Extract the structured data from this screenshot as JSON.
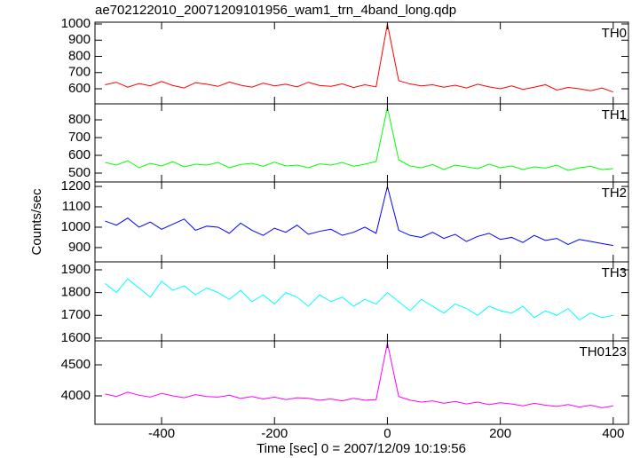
{
  "chart_data": [
    {
      "type": "line",
      "title": "ae702122010_20071209101956_wam1_trn_4band_long.qdp",
      "x": [
        -500,
        -480,
        -460,
        -440,
        -420,
        -400,
        -380,
        -360,
        -340,
        -320,
        -300,
        -280,
        -260,
        -240,
        -220,
        -200,
        -180,
        -160,
        -140,
        -120,
        -100,
        -80,
        -60,
        -40,
        -20,
        0,
        20,
        40,
        60,
        80,
        100,
        120,
        140,
        160,
        180,
        200,
        220,
        240,
        260,
        280,
        300,
        320,
        340,
        360,
        380,
        400
      ],
      "xlim": [
        -518,
        427
      ],
      "ylim": [
        507,
        1011
      ],
      "yticks": [
        600,
        700,
        800,
        900,
        1000
      ],
      "series": [
        {
          "name": "TH0",
          "color": "#ff0000",
          "values": [
            625,
            640,
            610,
            632,
            618,
            645,
            620,
            605,
            638,
            628,
            615,
            642,
            622,
            610,
            635,
            618,
            628,
            612,
            640,
            620,
            615,
            630,
            608,
            625,
            612,
            1000,
            650,
            630,
            618,
            625,
            610,
            622,
            605,
            628,
            612,
            600,
            618,
            596,
            610,
            625,
            592,
            608,
            600,
            588,
            605,
            580
          ]
        }
      ]
    },
    {
      "type": "line",
      "x": [
        -500,
        -480,
        -460,
        -440,
        -420,
        -400,
        -380,
        -360,
        -340,
        -320,
        -300,
        -280,
        -260,
        -240,
        -220,
        -200,
        -180,
        -160,
        -140,
        -120,
        -100,
        -80,
        -60,
        -40,
        -20,
        0,
        20,
        40,
        60,
        80,
        100,
        120,
        140,
        160,
        180,
        200,
        220,
        240,
        260,
        280,
        300,
        320,
        340,
        360,
        380,
        400
      ],
      "xlim": [
        -518,
        427
      ],
      "ylim": [
        450,
        890
      ],
      "yticks": [
        500,
        600,
        700,
        800
      ],
      "series": [
        {
          "name": "TH1",
          "color": "#00ff00",
          "values": [
            560,
            545,
            570,
            530,
            555,
            540,
            565,
            535,
            550,
            545,
            560,
            530,
            548,
            555,
            538,
            562,
            540,
            545,
            530,
            552,
            545,
            560,
            538,
            550,
            565,
            870,
            575,
            540,
            530,
            548,
            520,
            545,
            535,
            525,
            550,
            530,
            540,
            520,
            535,
            528,
            545,
            515,
            530,
            538,
            520,
            525
          ]
        }
      ]
    },
    {
      "type": "line",
      "ylabel": "Counts/sec",
      "x": [
        -500,
        -480,
        -460,
        -440,
        -420,
        -400,
        -380,
        -360,
        -340,
        -320,
        -300,
        -280,
        -260,
        -240,
        -220,
        -200,
        -180,
        -160,
        -140,
        -120,
        -100,
        -80,
        -60,
        -40,
        -20,
        0,
        20,
        40,
        60,
        80,
        100,
        120,
        140,
        160,
        180,
        200,
        220,
        240,
        260,
        280,
        300,
        320,
        340,
        360,
        380,
        400
      ],
      "xlim": [
        -518,
        427
      ],
      "ylim": [
        830,
        1222
      ],
      "yticks": [
        900,
        1000,
        1100,
        1200
      ],
      "series": [
        {
          "name": "TH2",
          "color": "#0000ff",
          "values": [
            1030,
            1010,
            1045,
            1000,
            1025,
            990,
            1015,
            1040,
            985,
            1005,
            1000,
            970,
            1020,
            985,
            960,
            995,
            975,
            1010,
            965,
            980,
            990,
            960,
            975,
            1000,
            970,
            1200,
            985,
            960,
            950,
            975,
            945,
            965,
            930,
            955,
            970,
            940,
            950,
            925,
            960,
            935,
            945,
            915,
            940,
            930,
            920,
            910
          ]
        }
      ]
    },
    {
      "type": "line",
      "x": [
        -500,
        -480,
        -460,
        -440,
        -420,
        -400,
        -380,
        -360,
        -340,
        -320,
        -300,
        -280,
        -260,
        -240,
        -220,
        -200,
        -180,
        -160,
        -140,
        -120,
        -100,
        -80,
        -60,
        -40,
        -20,
        0,
        20,
        40,
        60,
        80,
        100,
        120,
        140,
        160,
        180,
        200,
        220,
        240,
        260,
        280,
        300,
        320,
        340,
        360,
        380,
        400
      ],
      "xlim": [
        -518,
        427
      ],
      "ylim": [
        1588,
        1935
      ],
      "yticks": [
        1600,
        1700,
        1800,
        1900
      ],
      "series": [
        {
          "name": "TH3",
          "color": "#00ffff",
          "values": [
            1840,
            1800,
            1860,
            1820,
            1780,
            1850,
            1810,
            1830,
            1790,
            1820,
            1800,
            1770,
            1810,
            1760,
            1790,
            1750,
            1800,
            1780,
            1740,
            1790,
            1760,
            1780,
            1740,
            1770,
            1750,
            1800,
            1760,
            1720,
            1770,
            1740,
            1710,
            1750,
            1730,
            1700,
            1740,
            1720,
            1710,
            1740,
            1690,
            1720,
            1700,
            1730,
            1680,
            1710,
            1690,
            1700
          ]
        }
      ]
    },
    {
      "type": "line",
      "xlabel": "Time [sec] 0 = 2007/12/09 10:19:56",
      "x": [
        -500,
        -480,
        -460,
        -440,
        -420,
        -400,
        -380,
        -360,
        -340,
        -320,
        -300,
        -280,
        -260,
        -240,
        -220,
        -200,
        -180,
        -160,
        -140,
        -120,
        -100,
        -80,
        -60,
        -40,
        -20,
        0,
        20,
        40,
        60,
        80,
        100,
        120,
        140,
        160,
        180,
        200,
        220,
        240,
        260,
        280,
        300,
        320,
        340,
        360,
        380,
        400
      ],
      "xlim": [
        -518,
        427
      ],
      "xticks": [
        -400,
        -200,
        0,
        200,
        400
      ],
      "ylim": [
        3543,
        4886
      ],
      "yticks": [
        4000,
        4500
      ],
      "series": [
        {
          "name": "TH0123",
          "color": "#ff00ff",
          "values": [
            4030,
            3990,
            4060,
            4010,
            3980,
            4040,
            4000,
            3970,
            4020,
            3990,
            3980,
            4010,
            3960,
            3990,
            3950,
            3980,
            3940,
            3970,
            3960,
            3930,
            3950,
            3920,
            3960,
            3930,
            3940,
            4850,
            3990,
            3930,
            3900,
            3920,
            3880,
            3910,
            3870,
            3900,
            3860,
            3890,
            3870,
            3840,
            3880,
            3850,
            3830,
            3860,
            3820,
            3850,
            3810,
            3840
          ]
        }
      ]
    }
  ]
}
